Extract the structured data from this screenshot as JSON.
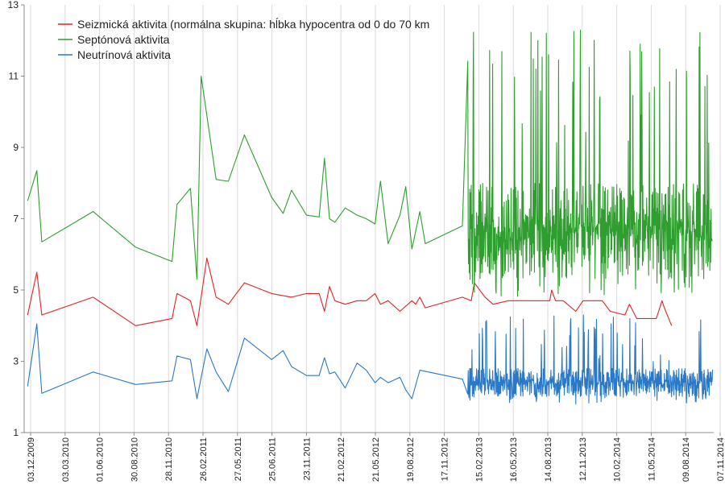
{
  "chart_data": {
    "type": "line",
    "title": "",
    "xlabel": "",
    "ylabel": "",
    "ylim": [
      1,
      13
    ],
    "yticks": [
      1,
      3,
      5,
      7,
      9,
      11,
      13
    ],
    "xlim": [
      "2009-12-03",
      "2014-11-07"
    ],
    "xtick_labels": [
      "03.12.2009",
      "03.03.2010",
      "01.06.2010",
      "30.08.2010",
      "28.11.2010",
      "26.02.2011",
      "27.05.2011",
      "25.06.2011",
      "23.11.2011",
      "21.02.2012",
      "21.05.2012",
      "19.08.2012",
      "17.11.2012",
      "15.02.2013",
      "16.05.2013",
      "14.08.2013",
      "12.11.2013",
      "10.02.2014",
      "11.05.2014",
      "09.08.2014",
      "07.11.2014"
    ],
    "grid": "vertical",
    "legend_position": "top-left",
    "series": [
      {
        "name": "Seizmická aktivita (normálna skupina: hĺbka hypocentra od 0 do 70 km",
        "color": "#e02424",
        "x": [
          "2009-12-12",
          "2010-01-05",
          "2010-01-18",
          "2010-06-01",
          "2010-09-20",
          "2010-12-24",
          "2011-01-06",
          "2011-02-10",
          "2011-02-27",
          "2011-03-25",
          "2011-04-18",
          "2011-05-20",
          "2011-07-01",
          "2011-09-10",
          "2011-11-01",
          "2011-12-10",
          "2012-01-12",
          "2012-01-26",
          "2012-02-08",
          "2012-02-22",
          "2012-03-20",
          "2012-04-20",
          "2012-05-14",
          "2012-06-06",
          "2012-06-20",
          "2012-07-10",
          "2012-08-10",
          "2012-09-10",
          "2012-09-20",
          "2012-10-01",
          "2012-10-15",
          "2013-01-20",
          "2013-02-12",
          "2013-02-20",
          "2013-03-20",
          "2013-04-10",
          "2013-05-20",
          "2013-06-15",
          "2013-09-05",
          "2013-09-10",
          "2013-09-20",
          "2013-10-10",
          "2013-11-12",
          "2013-12-01",
          "2014-01-20",
          "2014-02-10",
          "2014-03-20",
          "2014-04-01",
          "2014-04-20",
          "2014-05-11",
          "2014-06-10",
          "2014-06-22",
          "2014-06-25",
          "2014-07-01",
          "2014-07-20"
        ],
        "y": [
          4.3,
          5.5,
          4.3,
          4.8,
          4.0,
          4.2,
          4.9,
          4.7,
          4.0,
          5.9,
          4.8,
          4.6,
          5.2,
          4.9,
          4.8,
          4.9,
          4.9,
          4.4,
          5.1,
          4.7,
          4.6,
          4.7,
          4.7,
          4.9,
          4.6,
          4.7,
          4.4,
          4.7,
          4.6,
          4.8,
          4.5,
          4.8,
          4.7,
          5.2,
          4.8,
          4.6,
          4.7,
          4.7,
          4.7,
          5.0,
          4.7,
          4.7,
          4.4,
          4.7,
          4.7,
          4.4,
          4.3,
          4.6,
          4.2,
          4.2,
          4.2,
          4.6,
          4.7,
          4.5,
          4.0
        ]
      },
      {
        "name": "Septónová aktivita",
        "color": "#2e9e2e",
        "x": [
          "2009-12-12",
          "2010-01-05",
          "2010-01-18",
          "2010-06-01",
          "2010-09-20",
          "2010-12-24",
          "2011-01-06",
          "2011-02-10",
          "2011-02-27",
          "2011-03-10",
          "2011-04-18",
          "2011-05-20",
          "2011-07-01",
          "2011-09-10",
          "2011-10-10",
          "2011-11-01",
          "2011-12-10",
          "2012-01-12",
          "2012-01-26",
          "2012-02-08",
          "2012-02-22",
          "2012-03-20",
          "2012-04-20",
          "2012-05-14",
          "2012-06-06",
          "2012-06-20",
          "2012-07-10",
          "2012-08-10",
          "2012-08-25",
          "2012-09-10",
          "2012-10-01",
          "2012-10-15",
          "2013-01-20"
        ],
        "y": [
          7.5,
          8.35,
          6.35,
          7.2,
          6.2,
          5.8,
          7.4,
          7.85,
          5.3,
          11.0,
          8.1,
          8.05,
          9.35,
          7.6,
          7.15,
          7.8,
          7.1,
          7.05,
          8.7,
          7.0,
          6.9,
          7.3,
          7.1,
          7.0,
          6.85,
          8.05,
          6.3,
          7.1,
          7.9,
          6.15,
          7.2,
          6.3,
          6.8
        ],
        "dense_start": "2013-02-03",
        "dense_end": "2014-11-04",
        "dense_count": 640,
        "dense_range": [
          4.8,
          12.3
        ],
        "dense_typical": [
          5.3,
          8.0
        ]
      },
      {
        "name": "Neutrínová aktivita",
        "color": "#2a78c8",
        "x": [
          "2009-12-12",
          "2010-01-05",
          "2010-01-18",
          "2010-06-01",
          "2010-09-20",
          "2010-12-24",
          "2011-01-06",
          "2011-02-10",
          "2011-02-27",
          "2011-03-25",
          "2011-04-18",
          "2011-05-20",
          "2011-07-01",
          "2011-09-10",
          "2011-10-10",
          "2011-11-01",
          "2011-12-10",
          "2012-01-12",
          "2012-01-26",
          "2012-02-08",
          "2012-02-22",
          "2012-03-20",
          "2012-04-20",
          "2012-05-14",
          "2012-06-06",
          "2012-06-20",
          "2012-07-10",
          "2012-08-10",
          "2012-08-25",
          "2012-09-10",
          "2012-10-01",
          "2013-01-20"
        ],
        "y": [
          2.3,
          4.05,
          2.1,
          2.7,
          2.35,
          2.45,
          3.15,
          3.05,
          1.95,
          3.35,
          2.7,
          2.15,
          3.65,
          3.05,
          3.3,
          2.85,
          2.6,
          2.6,
          3.1,
          2.65,
          2.7,
          2.25,
          2.95,
          2.75,
          2.4,
          2.55,
          2.4,
          2.55,
          2.2,
          1.95,
          2.75,
          2.5
        ],
        "dense_start": "2013-02-03",
        "dense_end": "2014-11-04",
        "dense_count": 640,
        "dense_range": [
          1.8,
          4.3
        ],
        "dense_typical": [
          2.0,
          2.8
        ]
      }
    ]
  }
}
